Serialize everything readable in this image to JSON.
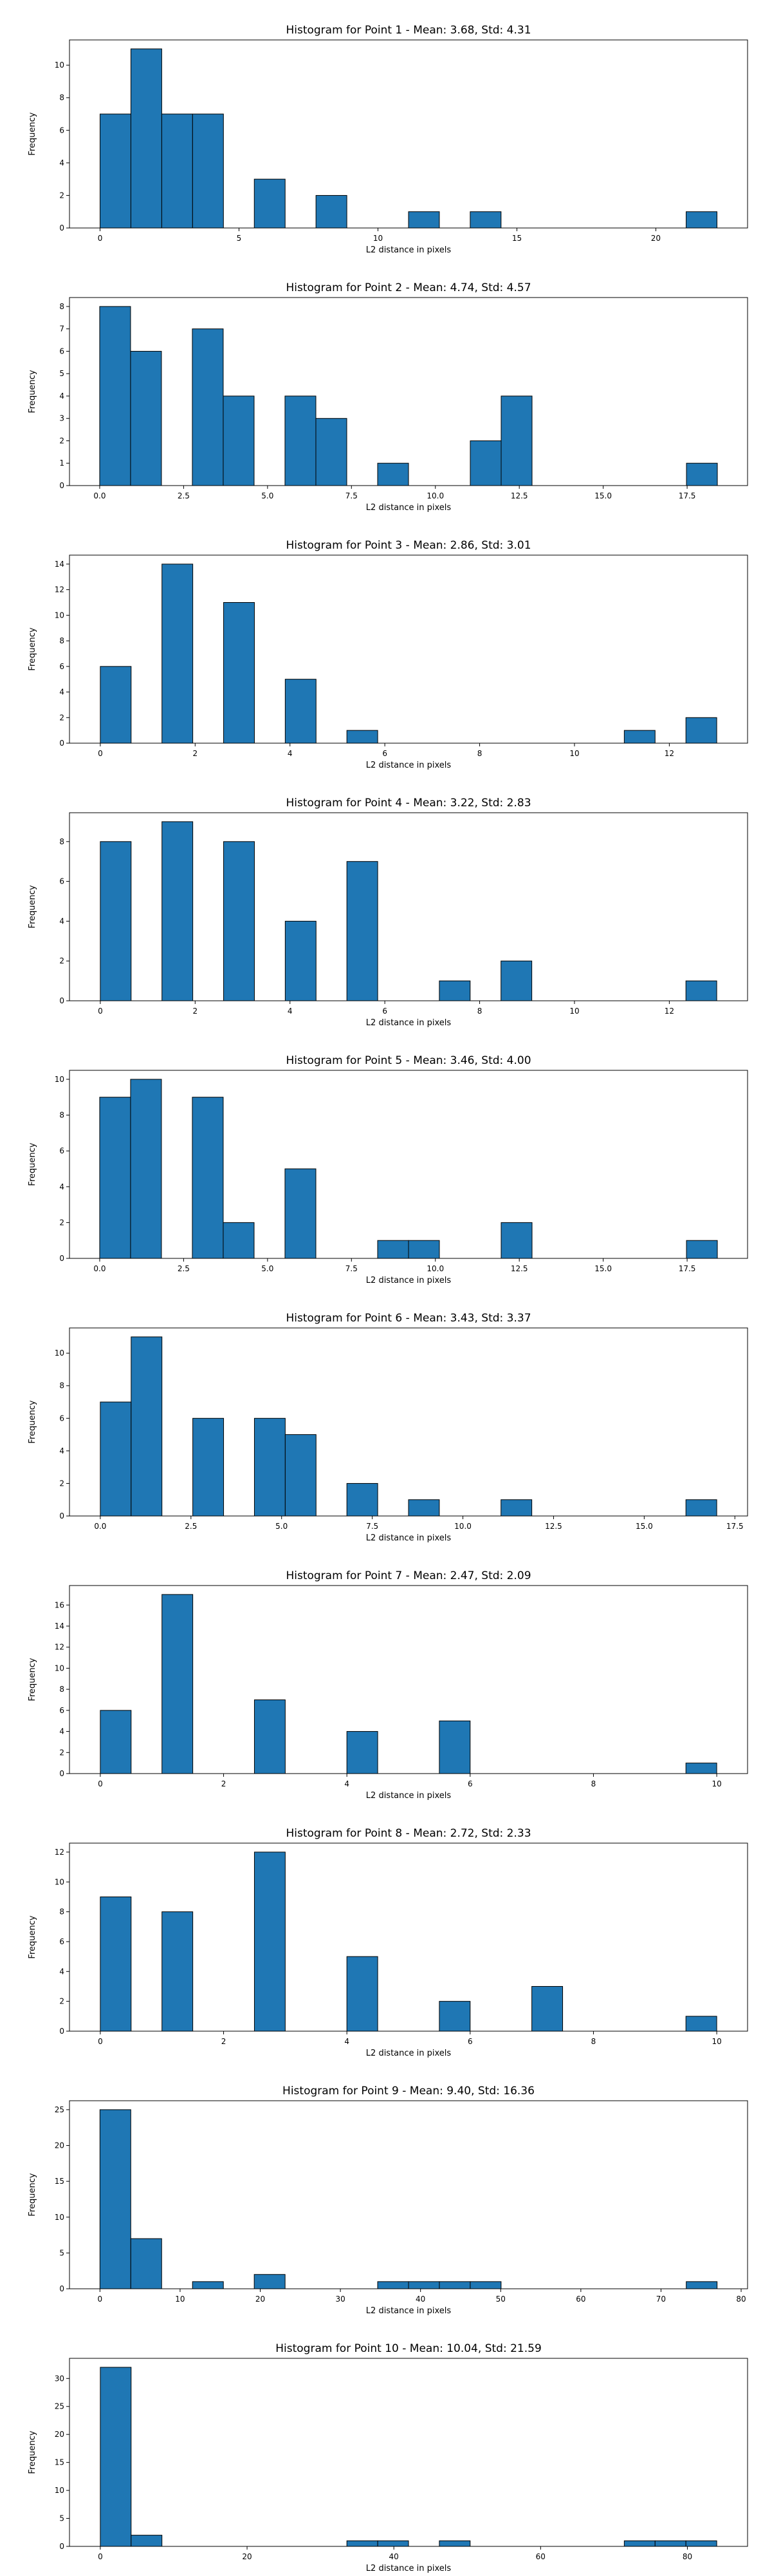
{
  "chart_data": [
    {
      "type": "bar",
      "title": "Histogram for Point 1 - Mean: 3.68, Std: 4.31",
      "xlabel": "L2 distance in pixels",
      "ylabel": "Frequency",
      "xlim": [
        -1.1,
        23.3
      ],
      "ylim": [
        0,
        11.55
      ],
      "xticks": [
        0,
        5,
        10,
        15,
        20
      ],
      "xtick_labels": [
        "0",
        "5",
        "10",
        "15",
        "20"
      ],
      "yticks": [
        0,
        2,
        4,
        6,
        8,
        10
      ],
      "ytick_labels": [
        "0",
        "2",
        "4",
        "6",
        "8",
        "10"
      ],
      "bin_edges": [
        0,
        1.11,
        2.22,
        3.33,
        4.44,
        5.55,
        6.66,
        7.77,
        8.88,
        9.99,
        11.1,
        12.21,
        13.32,
        14.43,
        15.54,
        16.65,
        17.76,
        18.87,
        19.98,
        21.09,
        22.2
      ],
      "values": [
        7,
        11,
        7,
        7,
        0,
        3,
        0,
        2,
        0,
        0,
        1,
        0,
        1,
        0,
        0,
        0,
        0,
        0,
        0,
        1
      ]
    },
    {
      "type": "bar",
      "title": "Histogram for Point 2 - Mean: 4.74, Std: 4.57",
      "xlabel": "L2 distance in pixels",
      "ylabel": "Frequency",
      "xlim": [
        -0.9,
        19.3
      ],
      "ylim": [
        0,
        8.4
      ],
      "xticks": [
        0,
        2.5,
        5,
        7.5,
        10,
        12.5,
        15,
        17.5
      ],
      "xtick_labels": [
        "0.0",
        "2.5",
        "5.0",
        "7.5",
        "10.0",
        "12.5",
        "15.0",
        "17.5"
      ],
      "yticks": [
        0,
        1,
        2,
        3,
        4,
        5,
        6,
        7,
        8
      ],
      "ytick_labels": [
        "0",
        "1",
        "2",
        "3",
        "4",
        "5",
        "6",
        "7",
        "8"
      ],
      "bin_edges": [
        0,
        0.92,
        1.84,
        2.76,
        3.68,
        4.6,
        5.52,
        6.44,
        7.36,
        8.28,
        9.2,
        10.12,
        11.04,
        11.96,
        12.88,
        13.8,
        14.72,
        15.64,
        16.56,
        17.48,
        18.4
      ],
      "values": [
        8,
        6,
        0,
        7,
        4,
        0,
        4,
        3,
        0,
        1,
        0,
        0,
        2,
        4,
        0,
        0,
        0,
        0,
        0,
        1
      ]
    },
    {
      "type": "bar",
      "title": "Histogram for Point 3 - Mean: 2.86, Std: 3.01",
      "xlabel": "L2 distance in pixels",
      "ylabel": "Frequency",
      "xlim": [
        -0.65,
        13.65
      ],
      "ylim": [
        0,
        14.7
      ],
      "xticks": [
        0,
        2,
        4,
        6,
        8,
        10,
        12
      ],
      "xtick_labels": [
        "0",
        "2",
        "4",
        "6",
        "8",
        "10",
        "12"
      ],
      "yticks": [
        0,
        2,
        4,
        6,
        8,
        10,
        12,
        14
      ],
      "ytick_labels": [
        "0",
        "2",
        "4",
        "6",
        "8",
        "10",
        "12",
        "14"
      ],
      "bin_edges": [
        0,
        0.65,
        1.3,
        1.95,
        2.6,
        3.25,
        3.9,
        4.55,
        5.2,
        5.85,
        6.5,
        7.15,
        7.8,
        8.45,
        9.1,
        9.75,
        10.4,
        11.05,
        11.7,
        12.35,
        13.0
      ],
      "values": [
        6,
        0,
        14,
        0,
        11,
        0,
        5,
        0,
        1,
        0,
        0,
        0,
        0,
        0,
        0,
        0,
        0,
        1,
        0,
        2
      ]
    },
    {
      "type": "bar",
      "title": "Histogram for Point 4 - Mean: 3.22, Std: 2.83",
      "xlabel": "L2 distance in pixels",
      "ylabel": "Frequency",
      "xlim": [
        -0.65,
        13.65
      ],
      "ylim": [
        0,
        9.45
      ],
      "xticks": [
        0,
        2,
        4,
        6,
        8,
        10,
        12
      ],
      "xtick_labels": [
        "0",
        "2",
        "4",
        "6",
        "8",
        "10",
        "12"
      ],
      "yticks": [
        0,
        2,
        4,
        6,
        8
      ],
      "ytick_labels": [
        "0",
        "2",
        "4",
        "6",
        "8"
      ],
      "bin_edges": [
        0,
        0.65,
        1.3,
        1.95,
        2.6,
        3.25,
        3.9,
        4.55,
        5.2,
        5.85,
        6.5,
        7.15,
        7.8,
        8.45,
        9.1,
        9.75,
        10.4,
        11.05,
        11.7,
        12.35,
        13.0
      ],
      "values": [
        8,
        0,
        9,
        0,
        8,
        0,
        4,
        0,
        7,
        0,
        0,
        1,
        0,
        2,
        0,
        0,
        0,
        0,
        0,
        1
      ]
    },
    {
      "type": "bar",
      "title": "Histogram for Point 5 - Mean: 3.46, Std: 4.00",
      "xlabel": "L2 distance in pixels",
      "ylabel": "Frequency",
      "xlim": [
        -0.9,
        19.3
      ],
      "ylim": [
        0,
        10.5
      ],
      "xticks": [
        0,
        2.5,
        5,
        7.5,
        10,
        12.5,
        15,
        17.5
      ],
      "xtick_labels": [
        "0.0",
        "2.5",
        "5.0",
        "7.5",
        "10.0",
        "12.5",
        "15.0",
        "17.5"
      ],
      "yticks": [
        0,
        2,
        4,
        6,
        8,
        10
      ],
      "ytick_labels": [
        "0",
        "2",
        "4",
        "6",
        "8",
        "10"
      ],
      "bin_edges": [
        0,
        0.92,
        1.84,
        2.76,
        3.68,
        4.6,
        5.52,
        6.44,
        7.36,
        8.28,
        9.2,
        10.12,
        11.04,
        11.96,
        12.88,
        13.8,
        14.72,
        15.64,
        16.56,
        17.48,
        18.4
      ],
      "values": [
        9,
        10,
        0,
        9,
        2,
        0,
        5,
        0,
        0,
        1,
        1,
        0,
        0,
        2,
        0,
        0,
        0,
        0,
        0,
        1
      ]
    },
    {
      "type": "bar",
      "title": "Histogram for Point 6 - Mean: 3.43, Std: 3.37",
      "xlabel": "L2 distance in pixels",
      "ylabel": "Frequency",
      "xlim": [
        -0.85,
        17.85
      ],
      "ylim": [
        0,
        11.55
      ],
      "xticks": [
        0,
        2.5,
        5,
        7.5,
        10,
        12.5,
        15,
        17.5
      ],
      "xtick_labels": [
        "0.0",
        "2.5",
        "5.0",
        "7.5",
        "10.0",
        "12.5",
        "15.0",
        "17.5"
      ],
      "yticks": [
        0,
        2,
        4,
        6,
        8,
        10
      ],
      "ytick_labels": [
        "0",
        "2",
        "4",
        "6",
        "8",
        "10"
      ],
      "bin_edges": [
        0,
        0.85,
        1.7,
        2.55,
        3.4,
        4.25,
        5.1,
        5.95,
        6.8,
        7.65,
        8.5,
        9.35,
        10.2,
        11.05,
        11.9,
        12.75,
        13.6,
        14.45,
        15.3,
        16.15,
        17.0
      ],
      "values": [
        7,
        11,
        0,
        6,
        0,
        6,
        5,
        0,
        2,
        0,
        1,
        0,
        0,
        1,
        0,
        0,
        0,
        0,
        0,
        1
      ]
    },
    {
      "type": "bar",
      "title": "Histogram for Point 7 - Mean: 2.47, Std: 2.09",
      "xlabel": "L2 distance in pixels",
      "ylabel": "Frequency",
      "xlim": [
        -0.5,
        10.5
      ],
      "ylim": [
        0,
        17.85
      ],
      "xticks": [
        0,
        2,
        4,
        6,
        8,
        10
      ],
      "xtick_labels": [
        "0",
        "2",
        "4",
        "6",
        "8",
        "10"
      ],
      "yticks": [
        0,
        2,
        4,
        6,
        8,
        10,
        12,
        14,
        16
      ],
      "ytick_labels": [
        "0",
        "2",
        "4",
        "6",
        "8",
        "10",
        "12",
        "14",
        "16"
      ],
      "bin_edges": [
        0,
        0.5,
        1.0,
        1.5,
        2.0,
        2.5,
        3.0,
        3.5,
        4.0,
        4.5,
        5.0,
        5.5,
        6.0,
        6.5,
        7.0,
        7.5,
        8.0,
        8.5,
        9.0,
        9.5,
        10.0
      ],
      "values": [
        6,
        0,
        17,
        0,
        0,
        7,
        0,
        0,
        4,
        0,
        0,
        5,
        0,
        0,
        0,
        0,
        0,
        0,
        0,
        1
      ]
    },
    {
      "type": "bar",
      "title": "Histogram for Point 8 - Mean: 2.72, Std: 2.33",
      "xlabel": "L2 distance in pixels",
      "ylabel": "Frequency",
      "xlim": [
        -0.5,
        10.5
      ],
      "ylim": [
        0,
        12.6
      ],
      "xticks": [
        0,
        2,
        4,
        6,
        8,
        10
      ],
      "xtick_labels": [
        "0",
        "2",
        "4",
        "6",
        "8",
        "10"
      ],
      "yticks": [
        0,
        2,
        4,
        6,
        8,
        10,
        12
      ],
      "ytick_labels": [
        "0",
        "2",
        "4",
        "6",
        "8",
        "10",
        "12"
      ],
      "bin_edges": [
        0,
        0.5,
        1.0,
        1.5,
        2.0,
        2.5,
        3.0,
        3.5,
        4.0,
        4.5,
        5.0,
        5.5,
        6.0,
        6.5,
        7.0,
        7.5,
        8.0,
        8.5,
        9.0,
        9.5,
        10.0
      ],
      "values": [
        9,
        0,
        8,
        0,
        0,
        12,
        0,
        0,
        5,
        0,
        0,
        2,
        0,
        0,
        3,
        0,
        0,
        0,
        0,
        1
      ]
    },
    {
      "type": "bar",
      "title": "Histogram for Point 9 - Mean: 9.40, Std: 16.36",
      "xlabel": "L2 distance in pixels",
      "ylabel": "Frequency",
      "xlim": [
        -3.8,
        80.8
      ],
      "ylim": [
        0,
        26.25
      ],
      "xticks": [
        0,
        10,
        20,
        30,
        40,
        50,
        60,
        70,
        80
      ],
      "xtick_labels": [
        "0",
        "10",
        "20",
        "30",
        "40",
        "50",
        "60",
        "70",
        "80"
      ],
      "yticks": [
        0,
        5,
        10,
        15,
        20,
        25
      ],
      "ytick_labels": [
        "0",
        "5",
        "10",
        "15",
        "20",
        "25"
      ],
      "bin_edges": [
        0,
        3.85,
        7.7,
        11.55,
        15.4,
        19.25,
        23.1,
        26.95,
        30.8,
        34.65,
        38.5,
        42.35,
        46.2,
        50.05,
        53.9,
        57.75,
        61.6,
        65.45,
        69.3,
        73.15,
        77.0
      ],
      "values": [
        25,
        7,
        0,
        1,
        0,
        2,
        0,
        0,
        0,
        1,
        1,
        1,
        1,
        0,
        0,
        0,
        0,
        0,
        0,
        1
      ]
    },
    {
      "type": "bar",
      "title": "Histogram for Point 10 - Mean: 10.04, Std: 21.59",
      "xlabel": "L2 distance in pixels",
      "ylabel": "Frequency",
      "xlim": [
        -4.2,
        88.2
      ],
      "ylim": [
        0,
        33.6
      ],
      "xticks": [
        0,
        20,
        40,
        60,
        80
      ],
      "xtick_labels": [
        "0",
        "20",
        "40",
        "60",
        "80"
      ],
      "yticks": [
        0,
        5,
        10,
        15,
        20,
        25,
        30
      ],
      "ytick_labels": [
        "0",
        "5",
        "10",
        "15",
        "20",
        "25",
        "30"
      ],
      "bin_edges": [
        0,
        4.2,
        8.4,
        12.6,
        16.8,
        21.0,
        25.2,
        29.4,
        33.6,
        37.8,
        42.0,
        46.2,
        50.4,
        54.6,
        58.8,
        63.0,
        67.2,
        71.4,
        75.6,
        79.8,
        84.0
      ],
      "values": [
        32,
        2,
        0,
        0,
        0,
        0,
        0,
        0,
        1,
        1,
        0,
        1,
        0,
        0,
        0,
        0,
        0,
        1,
        1,
        1
      ]
    }
  ]
}
